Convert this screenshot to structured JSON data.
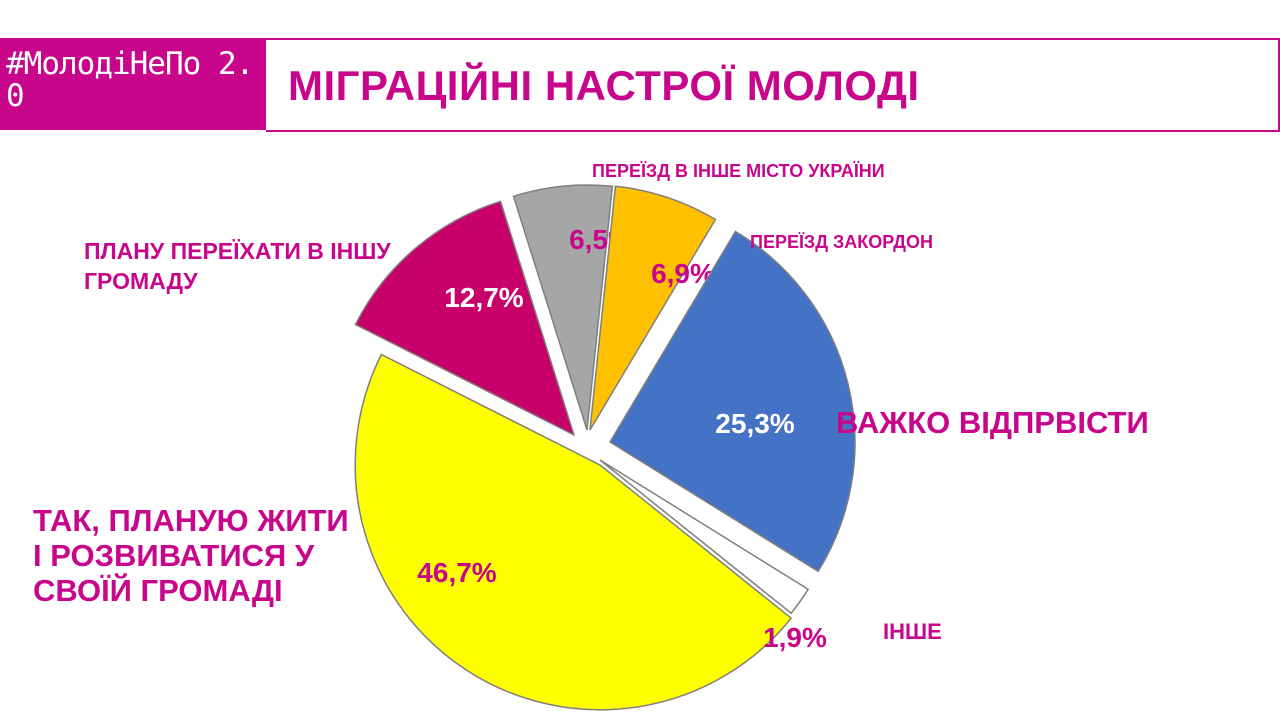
{
  "header": {
    "logo_text": "#МолодіНеПо 2.0",
    "title": "МІГРАЦІЙНІ НАСТРОЇ МОЛОДІ"
  },
  "colors": {
    "accent": "#c8068c"
  },
  "chart_data": {
    "type": "pie",
    "title": "",
    "slices": [
      {
        "label": "ТАК, ПЛАНУЮ ЖИТИ І РОЗВИВАТИСЯ У СВОЇЙ ГРОМАДІ",
        "value": 46.7,
        "value_label": "46,7%",
        "color": "#ffff00"
      },
      {
        "label": "ПЛАНУ ПЕРЕЇХАТИ В ІНШУ ГРОМАДУ",
        "value": 12.7,
        "value_label": "12,7%",
        "color": "#c8006a"
      },
      {
        "label": "ПЕРЕЇЗД В ІНШЕ МІСТО УКРАЇНИ",
        "value": 6.5,
        "value_label": "6,5%",
        "color": "#a6a6a6"
      },
      {
        "label": "ПЕРЕЇЗД ЗАКОРДОН",
        "value": 6.9,
        "value_label": "6,9%",
        "color": "#ffc000"
      },
      {
        "label": "ВАЖКО ВІДПРВІСТИ",
        "value": 25.3,
        "value_label": "25,3%",
        "color": "#4472c4"
      },
      {
        "label": "ІНШЕ",
        "value": 1.9,
        "value_label": "1,9%",
        "color": "#ffffff"
      }
    ]
  }
}
